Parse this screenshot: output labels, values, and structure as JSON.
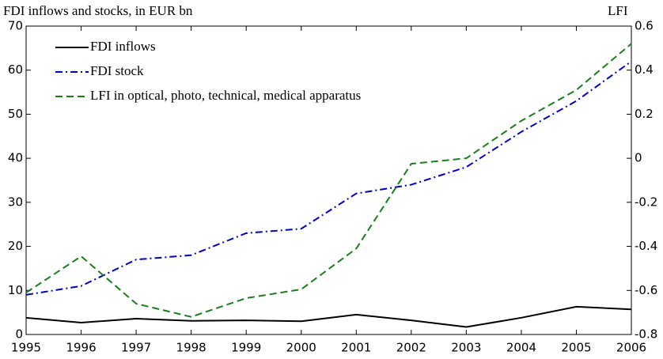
{
  "chart_data": {
    "type": "line",
    "title": "FDI inflows and stocks, in EUR bn",
    "y2_title": "LFI",
    "x": [
      1995,
      1996,
      1997,
      1998,
      1999,
      2000,
      2001,
      2002,
      2003,
      2004,
      2005,
      2006
    ],
    "xlim": [
      1995,
      2006
    ],
    "xticks": [
      1995,
      1996,
      1997,
      1998,
      1999,
      2000,
      2001,
      2002,
      2003,
      2004,
      2005,
      2006
    ],
    "ylim": [
      0,
      70
    ],
    "yticks": [
      0,
      10,
      20,
      30,
      40,
      50,
      60,
      70
    ],
    "y2lim": [
      -0.8,
      0.6
    ],
    "y2ticks": [
      -0.8,
      -0.6,
      -0.4,
      -0.2,
      0,
      0.2,
      0.4,
      0.6
    ],
    "grid": false,
    "legend": "upper left",
    "series": [
      {
        "name": "FDI inflows",
        "color": "#000000",
        "style": "solid",
        "values": [
          3.8,
          2.7,
          3.6,
          3.1,
          3.2,
          3.0,
          4.5,
          3.2,
          1.7,
          3.8,
          6.3,
          5.7
        ]
      },
      {
        "name": "FDI stock",
        "color": "#0000cc",
        "style": "dashdot",
        "values": [
          9,
          11,
          17,
          18,
          23,
          24,
          32,
          34,
          38,
          46,
          53,
          62
        ]
      },
      {
        "name": "LFI in optical, photo, technical, medical apparatus",
        "color": "#1a7f1a",
        "style": "dashed",
        "axis": "y2",
        "values": [
          -0.61,
          -0.445,
          -0.66,
          -0.72,
          -0.635,
          -0.595,
          -0.41,
          -0.025,
          0.0,
          0.17,
          0.31,
          0.52
        ]
      }
    ]
  }
}
